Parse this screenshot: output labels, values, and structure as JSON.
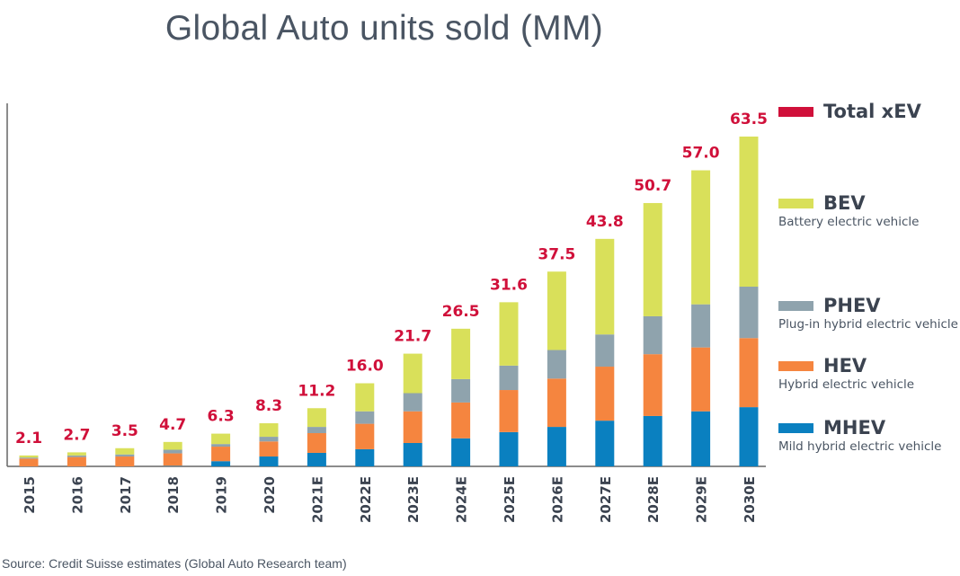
{
  "title": "Global Auto units sold (MM)",
  "source": "Source: Credit Suisse estimates (Global Auto Research team)",
  "legend": [
    {
      "key": "total",
      "label": "Total xEV",
      "desc": "",
      "color": "#d0103a"
    },
    {
      "key": "bev",
      "label": "BEV",
      "desc": "Battery electric vehicle",
      "color": "#d9e05a"
    },
    {
      "key": "phev",
      "label": "PHEV",
      "desc": "Plug-in hybrid electric vehicle",
      "color": "#8fa3ad"
    },
    {
      "key": "hev",
      "label": "HEV",
      "desc": "Hybrid electric vehicle",
      "color": "#f5853f"
    },
    {
      "key": "mhev",
      "label": "MHEV",
      "desc": "Mild hybrid electric vehicle",
      "color": "#0a80c0"
    }
  ],
  "chart_data": {
    "type": "bar",
    "stacked": true,
    "title": "Global Auto units sold (MM)",
    "xlabel": "",
    "ylabel": "",
    "ylim": [
      0,
      70
    ],
    "grid": false,
    "legend_position": "right",
    "categories": [
      "2015",
      "2016",
      "2017",
      "2018",
      "2019",
      "2020",
      "2021E",
      "2022E",
      "2023E",
      "2024E",
      "2025E",
      "2026E",
      "2027E",
      "2028E",
      "2029E",
      "2030E"
    ],
    "totals": [
      "2.1",
      "2.7",
      "3.5",
      "4.7",
      "6.3",
      "8.3",
      "11.2",
      "16.0",
      "21.7",
      "26.5",
      "31.6",
      "37.5",
      "43.8",
      "50.7",
      "57.0",
      "63.5"
    ],
    "series": [
      {
        "name": "MHEV",
        "color": "#0a80c0",
        "values": [
          0,
          0,
          0,
          0.1,
          1.0,
          1.9,
          2.6,
          3.3,
          4.5,
          5.4,
          6.6,
          7.6,
          8.8,
          9.7,
          10.6,
          11.4
        ]
      },
      {
        "name": "HEV",
        "color": "#f5853f",
        "values": [
          1.5,
          1.8,
          1.9,
          2.4,
          2.8,
          2.9,
          3.8,
          4.9,
          6.1,
          6.9,
          8.1,
          9.3,
          10.4,
          11.9,
          12.3,
          13.3
        ]
      },
      {
        "name": "PHEV",
        "color": "#8fa3ad",
        "values": [
          0.2,
          0.3,
          0.4,
          0.7,
          0.5,
          0.9,
          1.2,
          2.4,
          3.5,
          4.5,
          4.7,
          5.5,
          6.2,
          7.3,
          8.3,
          9.9
        ]
      },
      {
        "name": "BEV",
        "color": "#d9e05a",
        "values": [
          0.4,
          0.6,
          1.2,
          1.5,
          2.0,
          2.6,
          3.6,
          5.4,
          7.6,
          9.7,
          12.2,
          15.1,
          18.4,
          21.8,
          25.8,
          28.9
        ]
      }
    ]
  }
}
